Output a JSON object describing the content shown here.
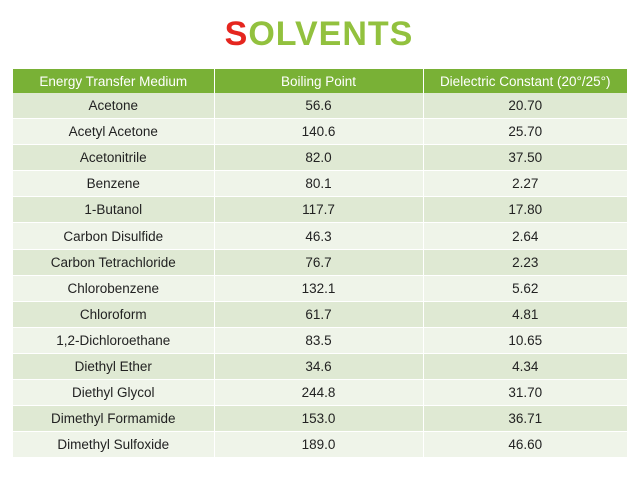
{
  "title": {
    "first_letter": "S",
    "rest": "OLVENTS"
  },
  "table": {
    "headers": [
      "Energy Transfer Medium",
      "Boiling Point",
      "Dielectric Constant (20°/25°)"
    ],
    "rows": [
      [
        "Acetone",
        "56.6",
        "20.70"
      ],
      [
        "Acetyl Acetone",
        "140.6",
        "25.70"
      ],
      [
        "Acetonitrile",
        "82.0",
        "37.50"
      ],
      [
        "Benzene",
        "80.1",
        "2.27"
      ],
      [
        "1-Butanol",
        "117.7",
        "17.80"
      ],
      [
        "Carbon Disulfide",
        "46.3",
        "2.64"
      ],
      [
        "Carbon Tetrachloride",
        "76.7",
        "2.23"
      ],
      [
        "Chlorobenzene",
        "132.1",
        "5.62"
      ],
      [
        "Chloroform",
        "61.7",
        "4.81"
      ],
      [
        "1,2-Dichloroethane",
        "83.5",
        "10.65"
      ],
      [
        "Diethyl Ether",
        "34.6",
        "4.34"
      ],
      [
        "Diethyl Glycol",
        "244.8",
        "31.70"
      ],
      [
        "Dimethyl Formamide",
        "153.0",
        "36.71"
      ],
      [
        "Dimethyl Sulfoxide",
        "189.0",
        "46.60"
      ]
    ]
  },
  "colors": {
    "title_accent": "#e5261f",
    "title_main": "#92c13e",
    "header_bg": "#79b136",
    "row_odd": "#dfe9d3",
    "row_even": "#eff4e9"
  }
}
